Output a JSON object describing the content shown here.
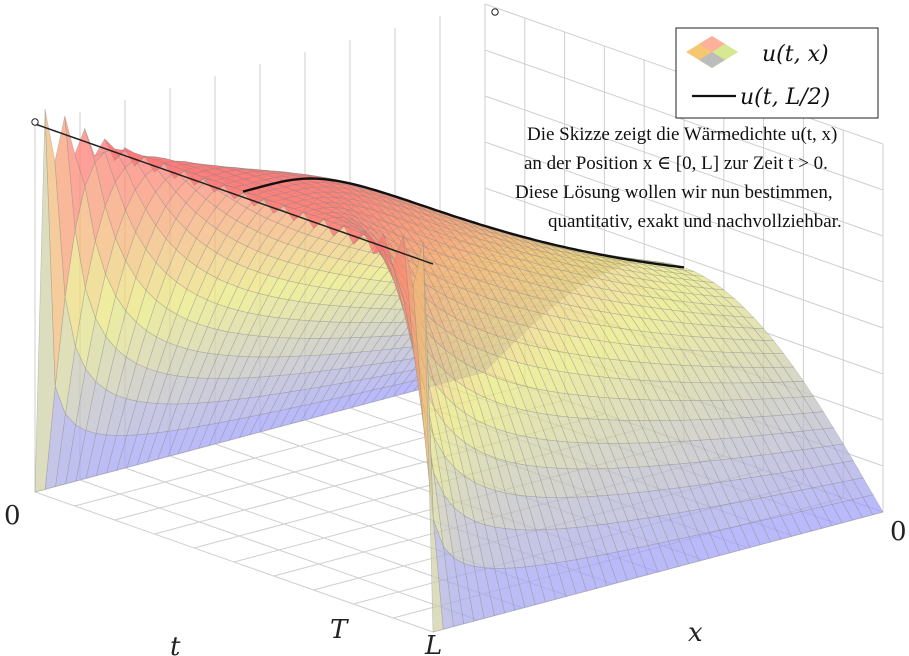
{
  "chart_data": {
    "type": "surface",
    "xlabel": "x",
    "ylabel": "t",
    "x_ticks": [
      "L",
      "0"
    ],
    "t_ticks": [
      "0",
      "T"
    ],
    "x_range": [
      0,
      1
    ],
    "t_range": [
      0,
      1
    ],
    "grid": true,
    "colors": {
      "low": "#9b9bff",
      "mid": "#e8e87a",
      "high": "#ff6f6f",
      "edge": "#f7d060"
    },
    "legend": {
      "placement": "top-right",
      "entries": [
        {
          "label": "u(t, x)",
          "kind": "surface"
        },
        {
          "label": "u(t, L/2)",
          "kind": "line",
          "color": "#111111"
        }
      ]
    },
    "annotation": [
      "Die Skizze zeigt die Wärmedichte u(t, x)",
      "an der Position x ∈ [0, L] zur Zeit t > 0.",
      "Diese Lösung wollen wir nun bestimmen,",
      "quantitativ, exakt und nachvollziehbar."
    ]
  }
}
